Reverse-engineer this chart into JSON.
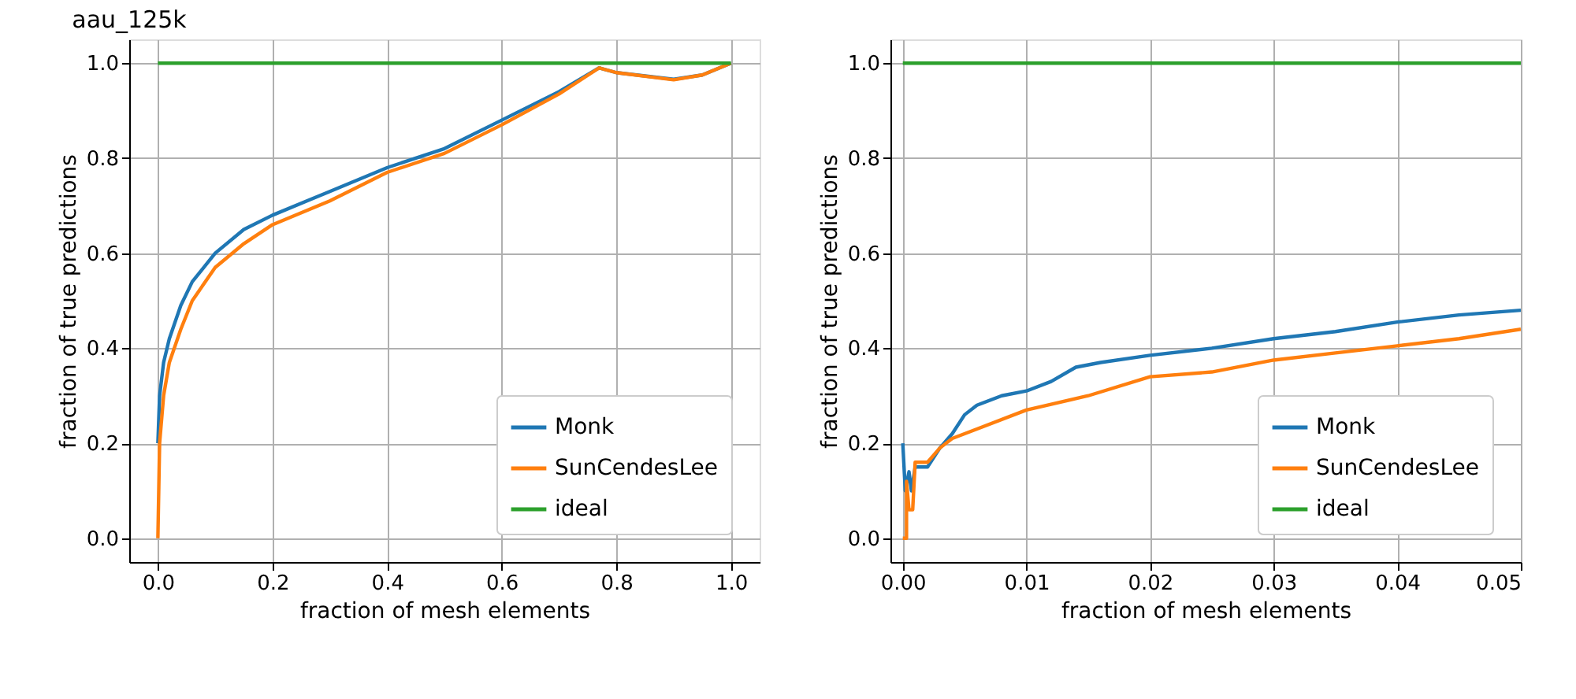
{
  "chart_data": [
    {
      "type": "line",
      "title": "aau_125k",
      "xlabel": "fraction of mesh elements",
      "ylabel": "fraction of true predictions",
      "xlim": [
        -0.05,
        1.05
      ],
      "ylim": [
        -0.05,
        1.05
      ],
      "xticks": [
        {
          "value": 0,
          "label": "0.0"
        },
        {
          "value": 0.2,
          "label": "0.2"
        },
        {
          "value": 0.4,
          "label": "0.4"
        },
        {
          "value": 0.6,
          "label": "0.6"
        },
        {
          "value": 0.8,
          "label": "0.8"
        },
        {
          "value": 1,
          "label": "1.0"
        }
      ],
      "yticks": [
        {
          "value": 0,
          "label": "0.0"
        },
        {
          "value": 0.2,
          "label": "0.2"
        },
        {
          "value": 0.4,
          "label": "0.4"
        },
        {
          "value": 0.6,
          "label": "0.6"
        },
        {
          "value": 0.8,
          "label": "0.8"
        },
        {
          "value": 1,
          "label": "1.0"
        }
      ],
      "grid": true,
      "legend": "bottom right",
      "line_style": "solid",
      "marker": "none",
      "series": [
        {
          "name": "Monk",
          "color": "#1f77b4",
          "x": [
            0,
            0.003,
            0.01,
            0.02,
            0.04,
            0.06,
            0.1,
            0.15,
            0.2,
            0.3,
            0.4,
            0.5,
            0.6,
            0.7,
            0.77,
            0.8,
            0.9,
            0.95,
            1.0
          ],
          "values": [
            0.2,
            0.3,
            0.37,
            0.42,
            0.49,
            0.54,
            0.6,
            0.65,
            0.68,
            0.73,
            0.78,
            0.82,
            0.88,
            0.94,
            0.99,
            0.98,
            0.966,
            0.975,
            1.0
          ]
        },
        {
          "name": "SunCendesLee",
          "color": "#ff7f0e",
          "x": [
            0,
            0.003,
            0.01,
            0.02,
            0.04,
            0.06,
            0.1,
            0.15,
            0.2,
            0.3,
            0.4,
            0.5,
            0.6,
            0.7,
            0.77,
            0.8,
            0.9,
            0.95,
            1.0
          ],
          "values": [
            0,
            0.2,
            0.3,
            0.37,
            0.44,
            0.5,
            0.57,
            0.62,
            0.66,
            0.71,
            0.77,
            0.81,
            0.87,
            0.935,
            0.99,
            0.98,
            0.965,
            0.975,
            1.0
          ]
        },
        {
          "name": "ideal",
          "color": "#2ca02c",
          "x": [
            0,
            1
          ],
          "values": [
            1,
            1
          ]
        }
      ]
    },
    {
      "type": "line",
      "xlabel": "fraction of mesh elements",
      "ylabel": "fraction of true predictions",
      "xlim": [
        -0.001,
        0.05
      ],
      "ylim": [
        -0.05,
        1.05
      ],
      "xticks": [
        {
          "value": 0,
          "label": "0.00"
        },
        {
          "value": 0.01,
          "label": "0.01"
        },
        {
          "value": 0.02,
          "label": "0.02"
        },
        {
          "value": 0.03,
          "label": "0.03"
        },
        {
          "value": 0.04,
          "label": "0.04"
        },
        {
          "value": 0.05,
          "label": "0.05"
        }
      ],
      "yticks": [
        {
          "value": 0,
          "label": "0.0"
        },
        {
          "value": 0.2,
          "label": "0.2"
        },
        {
          "value": 0.4,
          "label": "0.4"
        },
        {
          "value": 0.6,
          "label": "0.6"
        },
        {
          "value": 0.8,
          "label": "0.8"
        },
        {
          "value": 1,
          "label": "1.0"
        }
      ],
      "grid": true,
      "legend": "bottom right",
      "line_style": "solid",
      "marker": "none",
      "series": [
        {
          "name": "Monk",
          "color": "#1f77b4",
          "x": [
            0,
            0.0002,
            0.0005,
            0.0007,
            0.001,
            0.002,
            0.003,
            0.004,
            0.005,
            0.006,
            0.008,
            0.01,
            0.012,
            0.014,
            0.016,
            0.02,
            0.025,
            0.03,
            0.035,
            0.04,
            0.045,
            0.05
          ],
          "values": [
            0.2,
            0.1,
            0.14,
            0.1,
            0.15,
            0.15,
            0.19,
            0.22,
            0.26,
            0.28,
            0.3,
            0.31,
            0.33,
            0.36,
            0.37,
            0.385,
            0.4,
            0.42,
            0.435,
            0.455,
            0.47,
            0.48
          ]
        },
        {
          "name": "SunCendesLee",
          "color": "#ff7f0e",
          "x": [
            0,
            0.0003,
            0.0003,
            0.0005,
            0.0008,
            0.001,
            0.002,
            0.003,
            0.004,
            0.006,
            0.01,
            0.015,
            0.02,
            0.025,
            0.03,
            0.035,
            0.04,
            0.045,
            0.05
          ],
          "values": [
            0,
            0,
            0.12,
            0.06,
            0.06,
            0.16,
            0.16,
            0.19,
            0.21,
            0.23,
            0.27,
            0.3,
            0.34,
            0.35,
            0.375,
            0.39,
            0.405,
            0.42,
            0.44
          ]
        },
        {
          "name": "ideal",
          "color": "#2ca02c",
          "x": [
            0,
            0.05
          ],
          "values": [
            1,
            1
          ]
        }
      ]
    }
  ]
}
